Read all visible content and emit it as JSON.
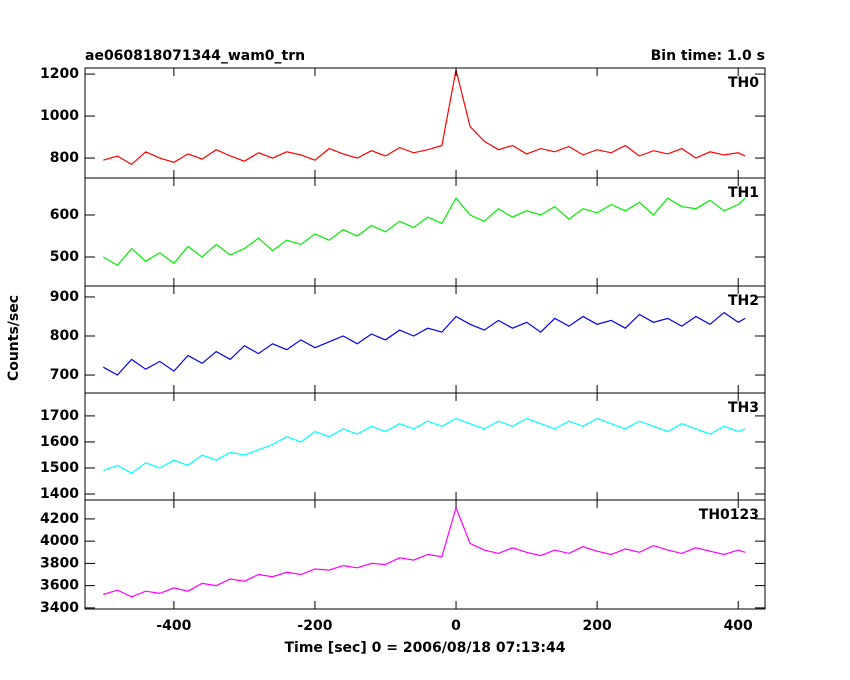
{
  "chart_data": {
    "type": "line",
    "title": "ae060818071344_wam0_trn",
    "bin_label": "Bin time: 1.0 s",
    "x_label": "Time [sec] 0 = 2006/08/18 07:13:44",
    "y_label": "Counts/sec",
    "xlim": [
      -526,
      438
    ],
    "xticks": [
      -400,
      -200,
      0,
      200,
      400
    ],
    "x": [
      -500,
      -480,
      -460,
      -440,
      -420,
      -400,
      -380,
      -360,
      -340,
      -320,
      -300,
      -280,
      -260,
      -240,
      -220,
      -200,
      -180,
      -160,
      -140,
      -120,
      -100,
      -80,
      -60,
      -40,
      -20,
      0,
      20,
      40,
      60,
      80,
      100,
      120,
      140,
      160,
      180,
      200,
      220,
      240,
      260,
      280,
      300,
      320,
      340,
      360,
      380,
      400,
      410
    ],
    "panels": [
      {
        "name": "TH0",
        "color": "#ff0000",
        "ylim": [
          705,
          1229
        ],
        "yticks": [
          800,
          1000,
          1200
        ],
        "values": [
          790,
          810,
          770,
          830,
          800,
          780,
          820,
          795,
          840,
          810,
          785,
          825,
          800,
          830,
          815,
          790,
          845,
          820,
          800,
          835,
          810,
          850,
          825,
          840,
          860,
          1220,
          950,
          880,
          840,
          860,
          820,
          845,
          830,
          855,
          815,
          840,
          825,
          860,
          810,
          835,
          820,
          845,
          800,
          830,
          815,
          825,
          810
        ]
      },
      {
        "name": "TH1",
        "color": "#00ee00",
        "ylim": [
          431,
          688
        ],
        "yticks": [
          500,
          600
        ],
        "values": [
          500,
          480,
          520,
          490,
          510,
          485,
          525,
          500,
          530,
          505,
          520,
          545,
          515,
          540,
          530,
          555,
          540,
          565,
          550,
          575,
          560,
          585,
          570,
          595,
          580,
          640,
          600,
          585,
          615,
          595,
          610,
          600,
          620,
          590,
          615,
          605,
          625,
          610,
          630,
          600,
          640,
          620,
          615,
          635,
          610,
          625,
          640
        ]
      },
      {
        "name": "TH2",
        "color": "#0000ee",
        "ylim": [
          654,
          928
        ],
        "yticks": [
          700,
          800,
          900
        ],
        "values": [
          720,
          700,
          740,
          715,
          735,
          710,
          750,
          730,
          760,
          740,
          775,
          755,
          780,
          765,
          790,
          770,
          785,
          800,
          780,
          805,
          790,
          815,
          800,
          820,
          810,
          850,
          830,
          815,
          840,
          820,
          835,
          810,
          845,
          825,
          850,
          830,
          840,
          820,
          855,
          835,
          845,
          825,
          850,
          830,
          860,
          835,
          845
        ]
      },
      {
        "name": "TH3",
        "color": "#00ffff",
        "ylim": [
          1377,
          1788
        ],
        "yticks": [
          1400,
          1500,
          1600,
          1700
        ],
        "values": [
          1490,
          1510,
          1480,
          1520,
          1500,
          1530,
          1510,
          1550,
          1530,
          1560,
          1550,
          1570,
          1590,
          1620,
          1600,
          1640,
          1620,
          1650,
          1630,
          1660,
          1640,
          1670,
          1650,
          1680,
          1660,
          1690,
          1670,
          1650,
          1680,
          1660,
          1690,
          1670,
          1650,
          1680,
          1660,
          1690,
          1670,
          1650,
          1680,
          1660,
          1640,
          1670,
          1650,
          1630,
          1660,
          1640,
          1650
        ]
      },
      {
        "name": "TH0123",
        "color": "#ff00ff",
        "ylim": [
          3390,
          4370
        ],
        "yticks": [
          3400,
          3600,
          3800,
          4000,
          4200
        ],
        "values": [
          3520,
          3560,
          3500,
          3550,
          3530,
          3580,
          3550,
          3620,
          3600,
          3660,
          3640,
          3700,
          3680,
          3720,
          3700,
          3750,
          3740,
          3780,
          3760,
          3800,
          3790,
          3850,
          3830,
          3880,
          3860,
          4300,
          3980,
          3920,
          3890,
          3940,
          3900,
          3870,
          3920,
          3890,
          3950,
          3910,
          3880,
          3930,
          3900,
          3960,
          3920,
          3890,
          3940,
          3910,
          3880,
          3920,
          3900
        ]
      }
    ]
  }
}
